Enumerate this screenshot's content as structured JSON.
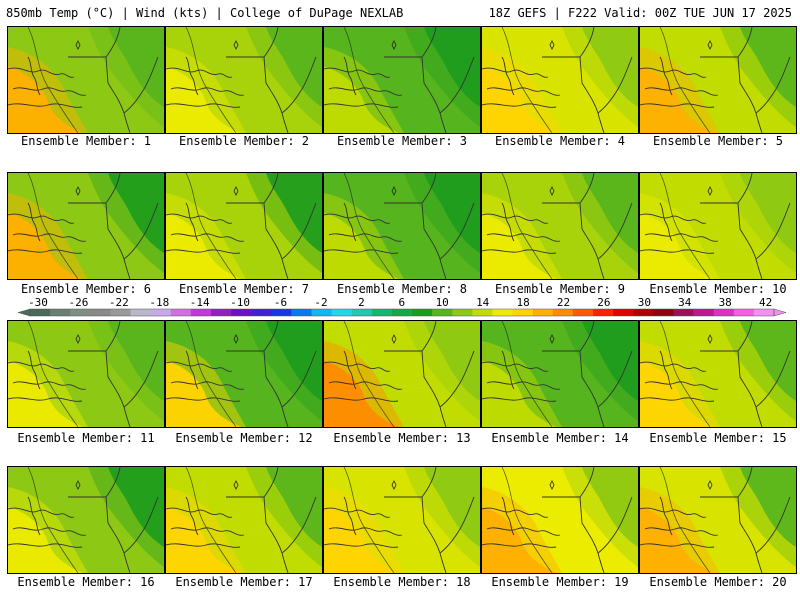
{
  "header": {
    "left": "850mb Temp (°C) | Wind (kts) | College of DuPage NEXLAB",
    "right": "18Z GEFS | F222 Valid: 00Z TUE JUN 17 2025"
  },
  "colorbar": {
    "ticks": [
      "-30",
      "-26",
      "-22",
      "-18",
      "-14",
      "-10",
      "-6",
      "-2",
      "2",
      "6",
      "10",
      "14",
      "18",
      "22",
      "26",
      "30",
      "34",
      "38",
      "42"
    ],
    "colors": [
      "#4a6a5a",
      "#6a7f72",
      "#7f8f84",
      "#8a8a8a",
      "#9a9a9a",
      "#b8b8c8",
      "#c8a8e8",
      "#d070e0",
      "#c038d8",
      "#9020c0",
      "#6a10c8",
      "#4020d8",
      "#1838e8",
      "#0a78f0",
      "#10b8f0",
      "#20d8e8",
      "#20c8b0",
      "#10b870",
      "#18a848",
      "#1e9c1e",
      "#56b41e",
      "#8cc814",
      "#c0dc00",
      "#ecec00",
      "#ffd400",
      "#ffb000",
      "#ff8c00",
      "#ff5a00",
      "#ff2000",
      "#e00000",
      "#b00000",
      "#900010",
      "#a0105a",
      "#c01890",
      "#e030c0",
      "#f060e0",
      "#f090f0"
    ]
  },
  "members": [
    {
      "label": "Ensemble Member: 1",
      "base": "#8cc814",
      "warm": "#ffb000",
      "cool": "#56b41e"
    },
    {
      "label": "Ensemble Member: 2",
      "base": "#a8d20a",
      "warm": "#ecec00",
      "cool": "#56b41e"
    },
    {
      "label": "Ensemble Member: 3",
      "base": "#56b41e",
      "warm": "#c0dc00",
      "cool": "#1e9c1e"
    },
    {
      "label": "Ensemble Member: 4",
      "base": "#d8e400",
      "warm": "#ffd400",
      "cool": "#8cc814"
    },
    {
      "label": "Ensemble Member: 5",
      "base": "#c0dc00",
      "warm": "#ffb000",
      "cool": "#56b41e"
    },
    {
      "label": "Ensemble Member: 6",
      "base": "#8cc814",
      "warm": "#ffb000",
      "cool": "#1e9c1e"
    },
    {
      "label": "Ensemble Member: 7",
      "base": "#a8d20a",
      "warm": "#ecec00",
      "cool": "#1e9c1e"
    },
    {
      "label": "Ensemble Member: 8",
      "base": "#56b41e",
      "warm": "#c0dc00",
      "cool": "#1e9c1e"
    },
    {
      "label": "Ensemble Member: 9",
      "base": "#a8d20a",
      "warm": "#ecec00",
      "cool": "#56b41e"
    },
    {
      "label": "Ensemble Member: 10",
      "base": "#c0dc00",
      "warm": "#ecec00",
      "cool": "#8cc814"
    },
    {
      "label": "Ensemble Member: 11",
      "base": "#8cc814",
      "warm": "#ecec00",
      "cool": "#56b41e"
    },
    {
      "label": "Ensemble Member: 12",
      "base": "#56b41e",
      "warm": "#ffd400",
      "cool": "#1e9c1e"
    },
    {
      "label": "Ensemble Member: 13",
      "base": "#c0dc00",
      "warm": "#ff8c00",
      "cool": "#8cc814"
    },
    {
      "label": "Ensemble Member: 14",
      "base": "#56b41e",
      "warm": "#c0dc00",
      "cool": "#1e9c1e"
    },
    {
      "label": "Ensemble Member: 15",
      "base": "#c0dc00",
      "warm": "#ffd400",
      "cool": "#56b41e"
    },
    {
      "label": "Ensemble Member: 16",
      "base": "#8cc814",
      "warm": "#ecec00",
      "cool": "#1e9c1e"
    },
    {
      "label": "Ensemble Member: 17",
      "base": "#c0dc00",
      "warm": "#ffd400",
      "cool": "#56b41e"
    },
    {
      "label": "Ensemble Member: 18",
      "base": "#d8e400",
      "warm": "#ffd400",
      "cool": "#8cc814"
    },
    {
      "label": "Ensemble Member: 19",
      "base": "#ecec00",
      "warm": "#ffb000",
      "cool": "#8cc814"
    },
    {
      "label": "Ensemble Member: 20",
      "base": "#d8e400",
      "warm": "#ffb000",
      "cool": "#56b41e"
    }
  ]
}
